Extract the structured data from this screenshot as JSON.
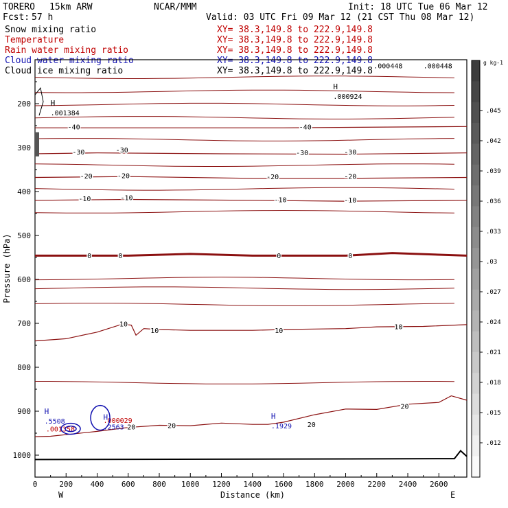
{
  "header": {
    "model": "TORERO",
    "resolution": "15km ARW",
    "org": "NCAR/MMM",
    "init": "Init: 18 UTC Tue 06 Mar 12",
    "fcst_label": "Fcst:",
    "fcst_value": "57 h",
    "valid": "Valid: 03 UTC Fri 09 Mar 12 (21 CST Thu 08 Mar 12)"
  },
  "fields": [
    {
      "label": "Snow mixing ratio",
      "color": "#000000",
      "xy": "XY=  38.3,149.8 to 222.9,149.8",
      "xy_color": "#c00000"
    },
    {
      "label": "Temperature",
      "color": "#c00000",
      "xy": "XY=  38.3,149.8 to 222.9,149.8",
      "xy_color": "#c00000"
    },
    {
      "label": "Rain water mixing ratio",
      "color": "#c00000",
      "xy": "XY=  38.3,149.8 to 222.9,149.8",
      "xy_color": "#c00000"
    },
    {
      "label": "Cloud water mixing ratio",
      "color": "#1010b0",
      "xy": "XY=  38.3,149.8 to 222.9,149.8",
      "xy_color": "#1010b0"
    },
    {
      "label": "Cloud ice mixing ratio",
      "color": "#000000",
      "xy": "XY=  38.3,149.8 to 222.9,149.8",
      "xy_color": "#000000"
    }
  ],
  "chart_data": {
    "type": "contour",
    "xlabel": "Distance (km)",
    "ylabel": "Pressure (hPa)",
    "x_range": [
      0,
      2780
    ],
    "x_ticks": [
      0,
      200,
      400,
      600,
      800,
      1000,
      1200,
      1400,
      1600,
      1800,
      2000,
      2200,
      2400,
      2600
    ],
    "y_range": [
      1050,
      100
    ],
    "y_ticks": [
      200,
      300,
      400,
      500,
      600,
      700,
      800,
      900,
      1000
    ],
    "x_end_labels": {
      "left": "W",
      "right": "E"
    },
    "temperature_contours": [
      {
        "label": "-40",
        "points": [
          [
            0,
            255
          ],
          [
            800,
            255
          ],
          [
            1600,
            255
          ],
          [
            2780,
            252
          ]
        ],
        "labels_at": [
          [
            250,
            252
          ],
          [
            1740,
            252
          ]
        ]
      },
      {
        "label": "-30",
        "points": [
          [
            0,
            314
          ],
          [
            400,
            312
          ],
          [
            1200,
            314
          ],
          [
            2000,
            315
          ],
          [
            2780,
            312
          ]
        ],
        "labels_at": [
          [
            280,
            309
          ],
          [
            560,
            305
          ],
          [
            1720,
            311
          ],
          [
            2030,
            309
          ]
        ]
      },
      {
        "label": "-20",
        "points": [
          [
            0,
            368
          ],
          [
            600,
            366
          ],
          [
            1400,
            370
          ],
          [
            2000,
            370
          ],
          [
            2780,
            368
          ]
        ],
        "labels_at": [
          [
            330,
            364
          ],
          [
            570,
            363
          ],
          [
            1530,
            366
          ],
          [
            2030,
            365
          ]
        ]
      },
      {
        "label": "-10",
        "points": [
          [
            0,
            420
          ],
          [
            600,
            418
          ],
          [
            1400,
            420
          ],
          [
            2000,
            422
          ],
          [
            2780,
            420
          ]
        ],
        "labels_at": [
          [
            320,
            416
          ],
          [
            590,
            413
          ],
          [
            1580,
            418
          ],
          [
            2030,
            419
          ]
        ]
      },
      {
        "label": "0",
        "points": [
          [
            0,
            546
          ],
          [
            600,
            546
          ],
          [
            1000,
            542
          ],
          [
            1400,
            546
          ],
          [
            2000,
            546
          ],
          [
            2300,
            540
          ],
          [
            2780,
            546
          ]
        ],
        "labels_at": [
          [
            350,
            545
          ],
          [
            550,
            545
          ],
          [
            1570,
            545
          ],
          [
            2030,
            545
          ]
        ],
        "bold": true
      },
      {
        "label": "10",
        "points": [
          [
            0,
            740
          ],
          [
            200,
            735
          ],
          [
            400,
            720
          ],
          [
            560,
            702
          ],
          [
            620,
            704
          ],
          [
            650,
            727
          ],
          [
            700,
            712
          ],
          [
            800,
            714
          ],
          [
            1000,
            716
          ],
          [
            1200,
            716
          ],
          [
            1400,
            716
          ],
          [
            1600,
            714
          ],
          [
            1800,
            713
          ],
          [
            2000,
            712
          ],
          [
            2200,
            708
          ],
          [
            2500,
            707
          ],
          [
            2780,
            703
          ]
        ],
        "labels_at": [
          [
            570,
            701
          ],
          [
            770,
            716
          ],
          [
            1570,
            716
          ],
          [
            2340,
            707
          ]
        ]
      },
      {
        "label": "20",
        "points": [
          [
            0,
            958
          ],
          [
            100,
            957
          ],
          [
            400,
            946
          ],
          [
            600,
            937
          ],
          [
            800,
            932
          ],
          [
            1000,
            933
          ],
          [
            1200,
            927
          ],
          [
            1400,
            930
          ],
          [
            1500,
            930
          ],
          [
            1600,
            925
          ],
          [
            1800,
            908
          ],
          [
            2000,
            895
          ],
          [
            2200,
            896
          ],
          [
            2400,
            884
          ],
          [
            2600,
            880
          ],
          [
            2680,
            865
          ],
          [
            2780,
            875
          ]
        ],
        "labels_at": [
          [
            620,
            935
          ],
          [
            880,
            932
          ],
          [
            1780,
            930
          ],
          [
            2380,
            888
          ]
        ]
      }
    ],
    "temperature_extra_isotherms_hPa": [
      140,
      172,
      202,
      232,
      282,
      340,
      394,
      446,
      598,
      620,
      657,
      835
    ],
    "cloud_ice_max": [
      {
        "x": 1920,
        "p": 183,
        "label": "H",
        "value": ".000924"
      },
      {
        "x": 2500,
        "p": 113,
        "value": ".000448"
      },
      {
        "x": 2180,
        "p": 113,
        "value": ".000448"
      }
    ],
    "snow_max": [
      {
        "x": 100,
        "p": 220,
        "label": "H",
        "value": ".001384"
      }
    ],
    "cloud_water_max": [
      {
        "x": 60,
        "p": 922,
        "label": "H",
        "value": ".5508"
      },
      {
        "x": 440,
        "p": 935,
        "label": "H",
        "value": ".2563"
      },
      {
        "x": 1520,
        "p": 933,
        "label": "H",
        "value": ".1929"
      }
    ],
    "rain_max": [
      {
        "x": 70,
        "p": 940,
        "value": ".001358"
      },
      {
        "x": 440,
        "p": 920,
        "value": ".000029"
      }
    ],
    "colorbar": {
      "unit": "g kg-1",
      "levels": [
        ".045",
        ".042",
        ".039",
        ".036",
        ".033",
        ".03",
        ".027",
        ".024",
        ".021",
        ".018",
        ".015",
        ".012"
      ]
    }
  }
}
